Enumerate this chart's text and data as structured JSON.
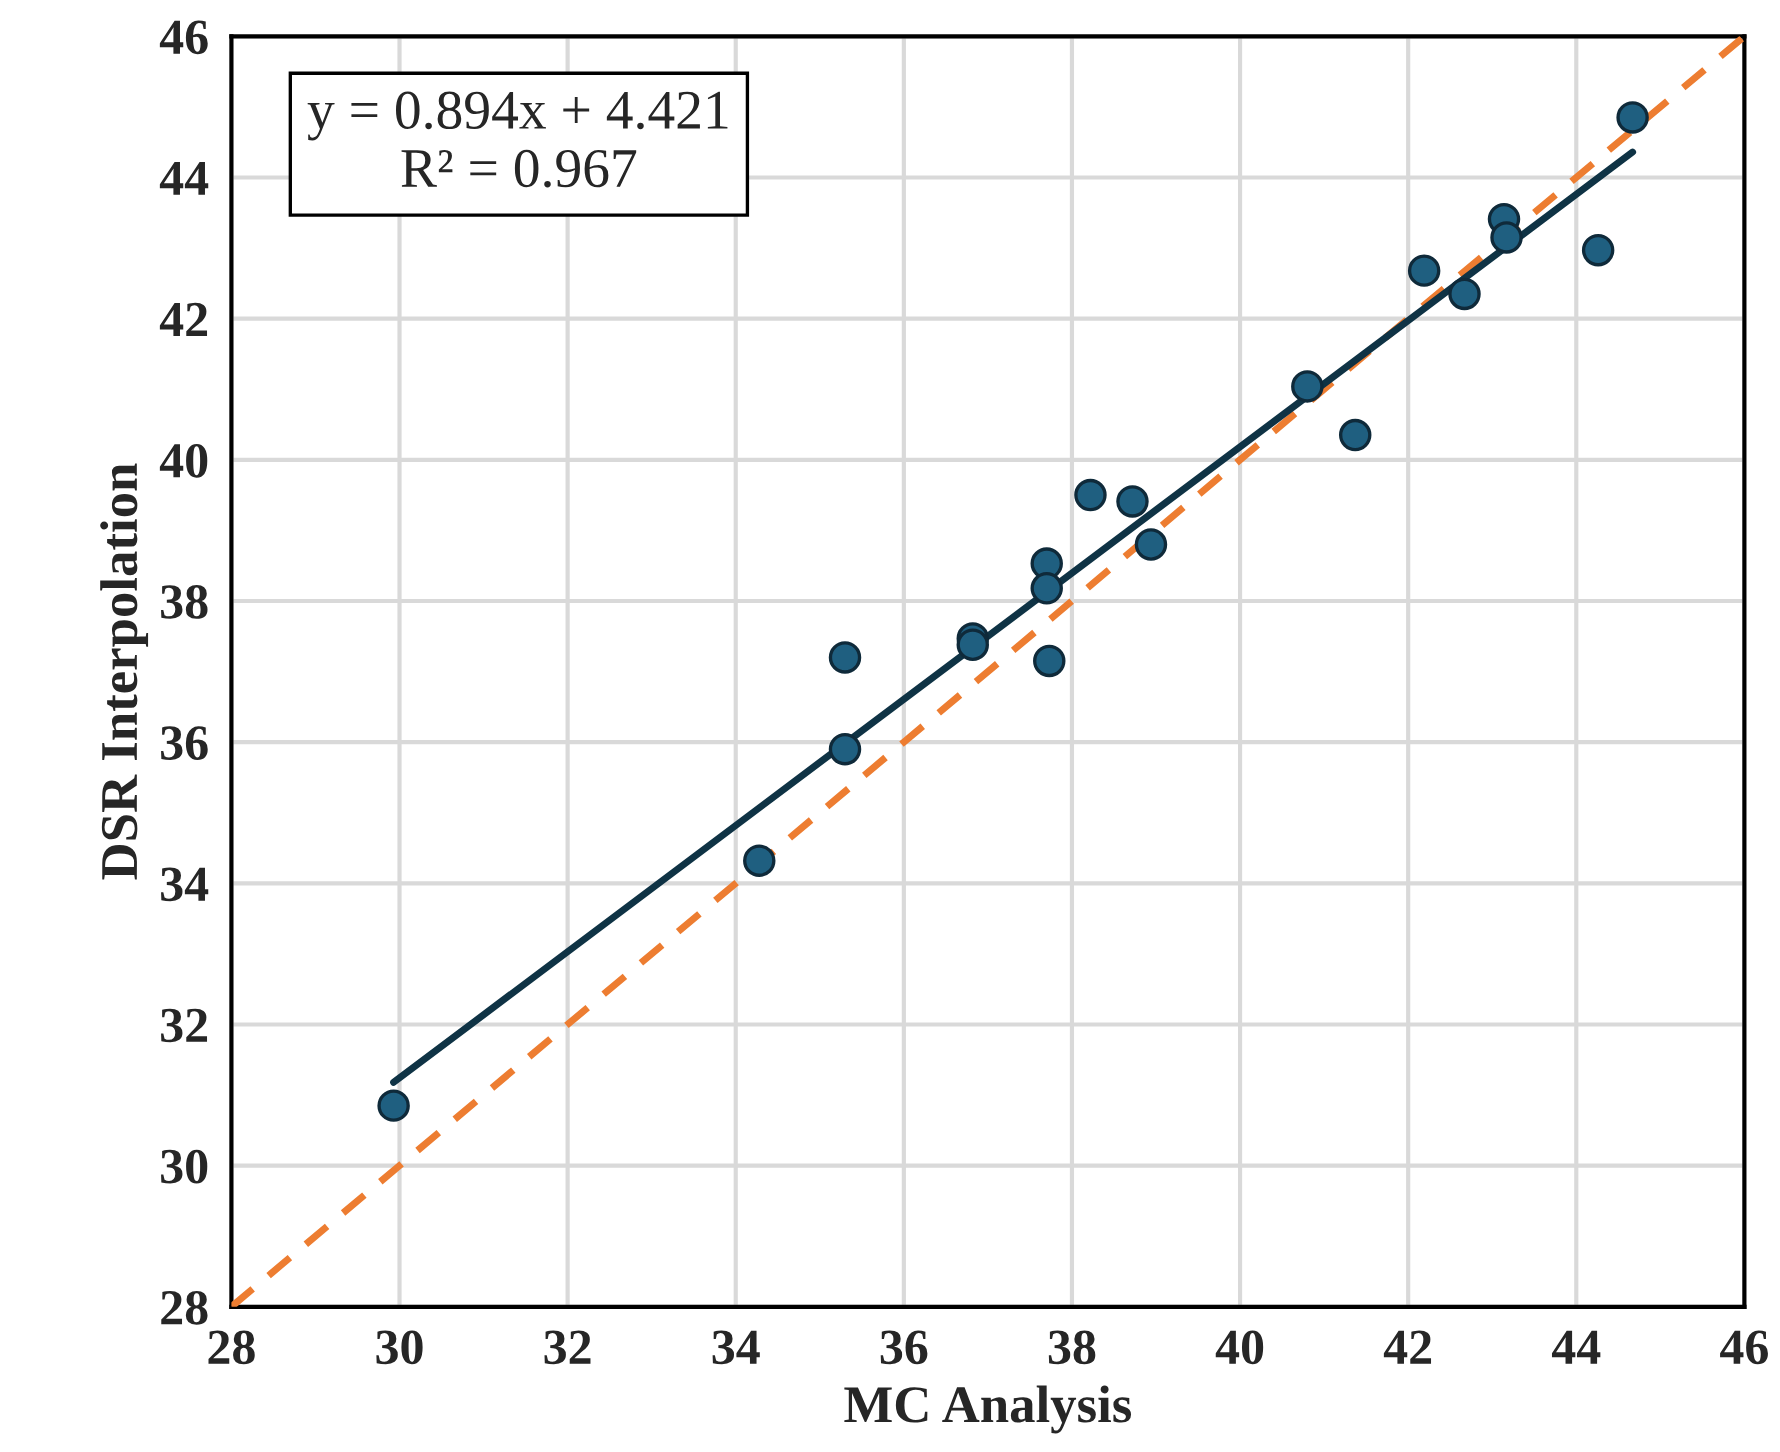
{
  "chart_data": {
    "type": "scatter",
    "xlabel": "MC Analysis",
    "ylabel": "DSR Interpolation",
    "xlim": [
      28,
      46
    ],
    "xticks": [
      28,
      30,
      32,
      34,
      36,
      38,
      40,
      42,
      44,
      46
    ],
    "ylim": [
      28,
      46
    ],
    "yticks": [
      28,
      30,
      32,
      34,
      36,
      38,
      40,
      42,
      44,
      46
    ],
    "grid": true,
    "annotations": [
      "y = 0.894x + 4.421\nR² = 0.967"
    ],
    "series": [
      {
        "type": "line",
        "color": "#ed7d31",
        "line_style": "dashed",
        "marker": "none",
        "x": [
          28,
          46
        ],
        "values": [
          28,
          46
        ]
      },
      {
        "type": "line",
        "color": "#0f3345",
        "line_style": "solid",
        "marker": "none",
        "x": [
          29.93,
          44.67
        ],
        "values": [
          31.18,
          44.36
        ]
      },
      {
        "color": "#1f5f80",
        "marker": "circle",
        "x": [
          29.93,
          34.28,
          35.3,
          35.3,
          36.82,
          36.82,
          37.7,
          37.7,
          37.73,
          38.22,
          38.72,
          38.94,
          40.8,
          41.37,
          42.19,
          42.67,
          43.14,
          43.17,
          44.26,
          44.67
        ],
        "values": [
          30.85,
          34.32,
          37.2,
          35.9,
          37.47,
          37.38,
          38.53,
          38.18,
          37.15,
          39.5,
          39.41,
          38.8,
          41.04,
          40.35,
          42.68,
          42.35,
          43.41,
          43.15,
          42.97,
          44.85
        ]
      }
    ]
  }
}
